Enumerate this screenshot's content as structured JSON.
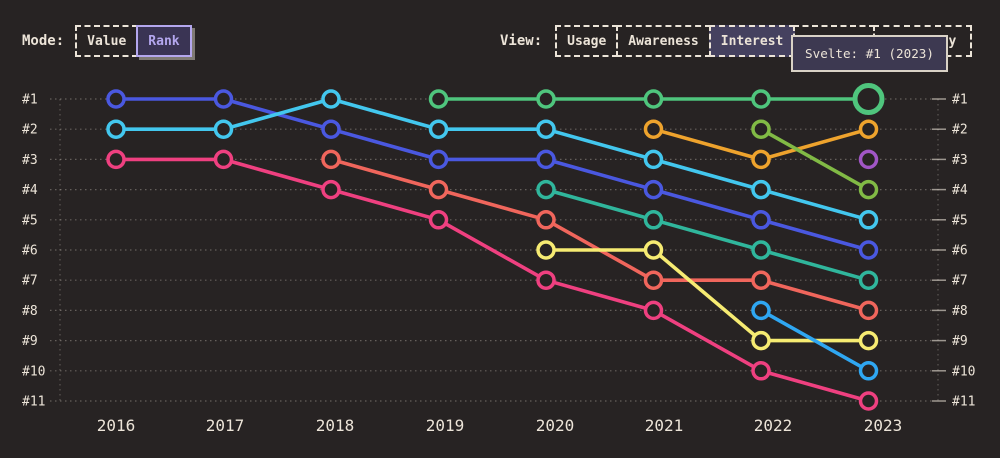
{
  "page": {
    "background": "#272323",
    "text_color": "#ece4d8",
    "accent_selected_mode": "#b4a7ee"
  },
  "controls": {
    "mode": {
      "label": "Mode:",
      "options": [
        {
          "label": "Value",
          "selected": false
        },
        {
          "label": "Rank",
          "selected": true
        }
      ]
    },
    "view": {
      "label": "View:",
      "options": [
        {
          "label": "Usage",
          "selected": false
        },
        {
          "label": "Awareness",
          "selected": false
        },
        {
          "label": "Interest",
          "selected": true
        },
        {
          "label": "",
          "selected": false,
          "occluded": true
        },
        {
          "label": "ty",
          "selected": false,
          "occluded": true,
          "partial": true
        }
      ]
    }
  },
  "tooltip": {
    "text": "Svelte: #1 (2023)"
  },
  "chart_data": {
    "type": "line",
    "subtype": "bump-rank-chart",
    "title": "",
    "x": [
      2016,
      2017,
      2018,
      2019,
      2020,
      2021,
      2022,
      2023
    ],
    "y_rank_labels": [
      "#1",
      "#2",
      "#3",
      "#4",
      "#5",
      "#6",
      "#7",
      "#8",
      "#9",
      "#10",
      "#11"
    ],
    "y_axis": "rank (1 = top)",
    "ylim": [
      1,
      11
    ],
    "grid": "dotted horizontal per rank, dotted vertical at both sides",
    "legend_position": "none",
    "series": [
      {
        "id": "blue",
        "color": "#4a58e0",
        "ranks": [
          1,
          1,
          2,
          3,
          3,
          4,
          5,
          6
        ]
      },
      {
        "id": "cyan",
        "color": "#43c7ee",
        "ranks": [
          2,
          2,
          1,
          2,
          2,
          3,
          4,
          5
        ]
      },
      {
        "id": "pink",
        "color": "#ef4080",
        "ranks": [
          3,
          3,
          4,
          5,
          7,
          8,
          10,
          11
        ]
      },
      {
        "id": "salmon",
        "color": "#f0665c",
        "ranks": [
          null,
          null,
          3,
          4,
          5,
          7,
          7,
          8
        ]
      },
      {
        "id": "svelte-green",
        "name": "Svelte",
        "color": "#4fc57d",
        "ranks": [
          null,
          null,
          null,
          1,
          1,
          1,
          1,
          1
        ]
      },
      {
        "id": "teal",
        "color": "#30b69c",
        "ranks": [
          null,
          null,
          null,
          null,
          4,
          5,
          6,
          7
        ]
      },
      {
        "id": "yellow",
        "color": "#f6eb72",
        "ranks": [
          null,
          null,
          null,
          null,
          6,
          6,
          9,
          9
        ]
      },
      {
        "id": "orange",
        "color": "#eea32d",
        "ranks": [
          null,
          null,
          null,
          null,
          null,
          2,
          3,
          2
        ]
      },
      {
        "id": "lightgreen",
        "color": "#81ba45",
        "ranks": [
          null,
          null,
          null,
          null,
          null,
          null,
          2,
          4
        ]
      },
      {
        "id": "lightblue",
        "color": "#2fa7f2",
        "ranks": [
          null,
          null,
          null,
          null,
          null,
          null,
          8,
          10
        ]
      },
      {
        "id": "purple",
        "color": "#a156c6",
        "ranks": [
          null,
          null,
          null,
          null,
          null,
          null,
          null,
          3
        ]
      }
    ],
    "highlight": {
      "series": "svelte-green",
      "year": 2023,
      "rank": 1,
      "tooltip": "Svelte: #1 (2023)"
    }
  }
}
